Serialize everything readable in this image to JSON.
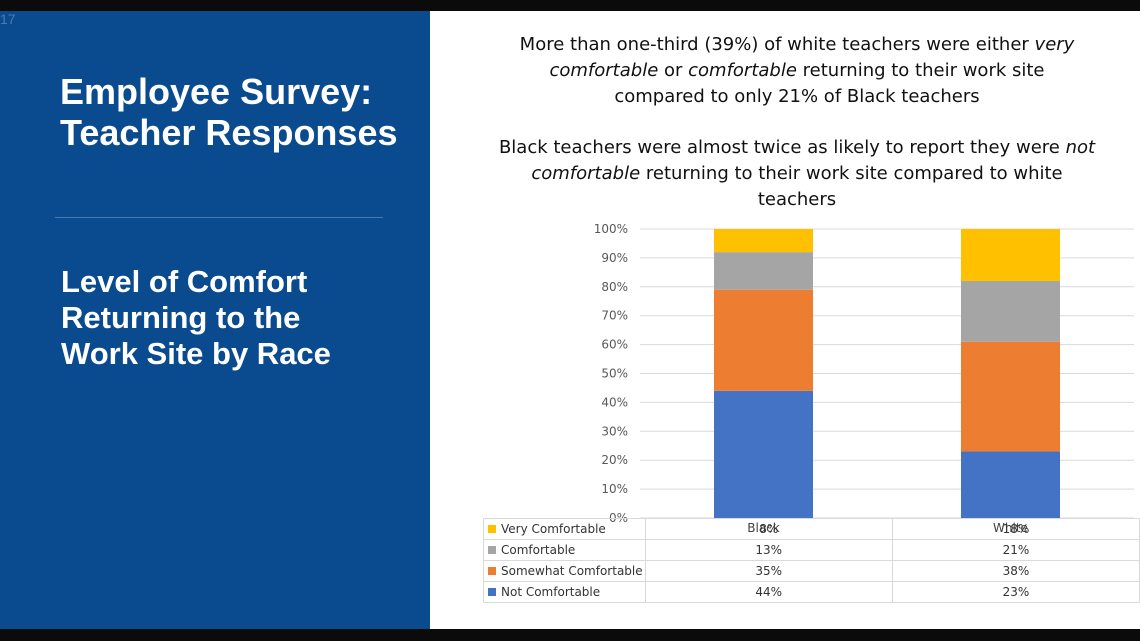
{
  "slide_number": "17",
  "left": {
    "title_line1": "Employee Survey:",
    "title_line2": "Teacher Responses",
    "subtitle_line1": "Level of Comfort",
    "subtitle_line2": "Returning to the",
    "subtitle_line3": "Work Site by Race"
  },
  "text": {
    "p1_a": "More than one-third (39%) of white teachers were either ",
    "p1_b": "very comfortable",
    "p1_c": " or ",
    "p1_d": "comfortable",
    "p1_e": " returning to their work site compared to only 21% of Black teachers",
    "p2_a": "Black teachers were almost twice as likely to report they were ",
    "p2_b": "not comfortable",
    "p2_c": " returning to their work site compared to white teachers"
  },
  "colors": {
    "Very Comfortable": "#ffc000",
    "Comfortable": "#a5a5a5",
    "Somewhat Comfortable": "#ed7d31",
    "Not Comfortable": "#4472c4"
  },
  "chart_data": {
    "type": "bar",
    "stacked": true,
    "categories": [
      "Black",
      "White"
    ],
    "ylim": [
      0,
      100
    ],
    "yticks": [
      "0%",
      "10%",
      "20%",
      "30%",
      "40%",
      "50%",
      "60%",
      "70%",
      "80%",
      "90%",
      "100%"
    ],
    "grid": true,
    "series": [
      {
        "name": "Not Comfortable",
        "values": [
          44,
          23
        ],
        "labels": [
          "44%",
          "23%"
        ]
      },
      {
        "name": "Somewhat Comfortable",
        "values": [
          35,
          38
        ],
        "labels": [
          "35%",
          "38%"
        ]
      },
      {
        "name": "Comfortable",
        "values": [
          13,
          21
        ],
        "labels": [
          "13%",
          "21%"
        ]
      },
      {
        "name": "Very Comfortable",
        "values": [
          8,
          18
        ],
        "labels": [
          "8%",
          "18%"
        ]
      }
    ],
    "data_table_order": [
      "Very Comfortable",
      "Comfortable",
      "Somewhat Comfortable",
      "Not Comfortable"
    ]
  }
}
